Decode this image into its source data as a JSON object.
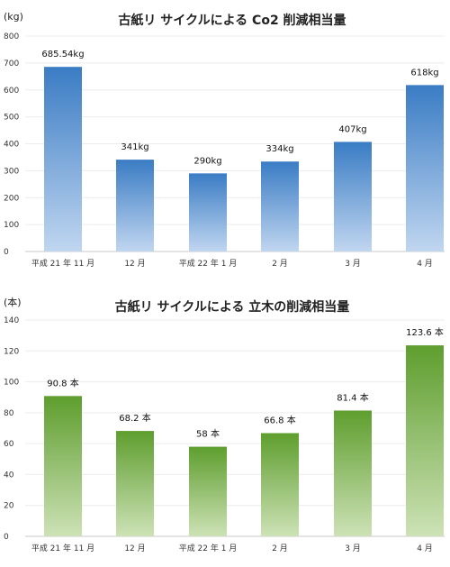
{
  "chart_data": [
    {
      "type": "bar",
      "title": "古紙リ サイクルによる Co2 削減相当量",
      "ylabel": "(kg)",
      "xlabel": "",
      "categories": [
        "平成 21 年 11 月",
        "12 月",
        "平成 22 年 1 月",
        "2 月",
        "3 月",
        "4 月"
      ],
      "values": [
        685.54,
        341,
        290,
        334,
        407,
        618
      ],
      "data_labels": [
        "685.54kg",
        "341kg",
        "290kg",
        "334kg",
        "407kg",
        "618kg"
      ],
      "ylim": [
        0,
        800
      ],
      "yticks": [
        0,
        100,
        200,
        300,
        400,
        500,
        600,
        700,
        800
      ],
      "grid": true,
      "colors": {
        "top": "#3a7cc4",
        "bottom": "#c0d6f0"
      }
    },
    {
      "type": "bar",
      "title": "古紙リ サイクルによる 立木の削減相当量",
      "ylabel": "(本)",
      "xlabel": "",
      "categories": [
        "平成 21 年 11 月",
        "12 月",
        "平成 22 年 1 月",
        "2 月",
        "3 月",
        "4 月"
      ],
      "values": [
        90.8,
        68.2,
        58,
        66.8,
        81.4,
        123.6
      ],
      "data_labels": [
        "90.8 本",
        "68.2 本",
        "58 本",
        "66.8 本",
        "81.4 本",
        "123.6 本"
      ],
      "ylim": [
        0,
        140
      ],
      "yticks": [
        0,
        20,
        40,
        60,
        80,
        100,
        120,
        140
      ],
      "grid": true,
      "colors": {
        "top": "#5e9e2e",
        "bottom": "#cde2b6"
      }
    }
  ]
}
